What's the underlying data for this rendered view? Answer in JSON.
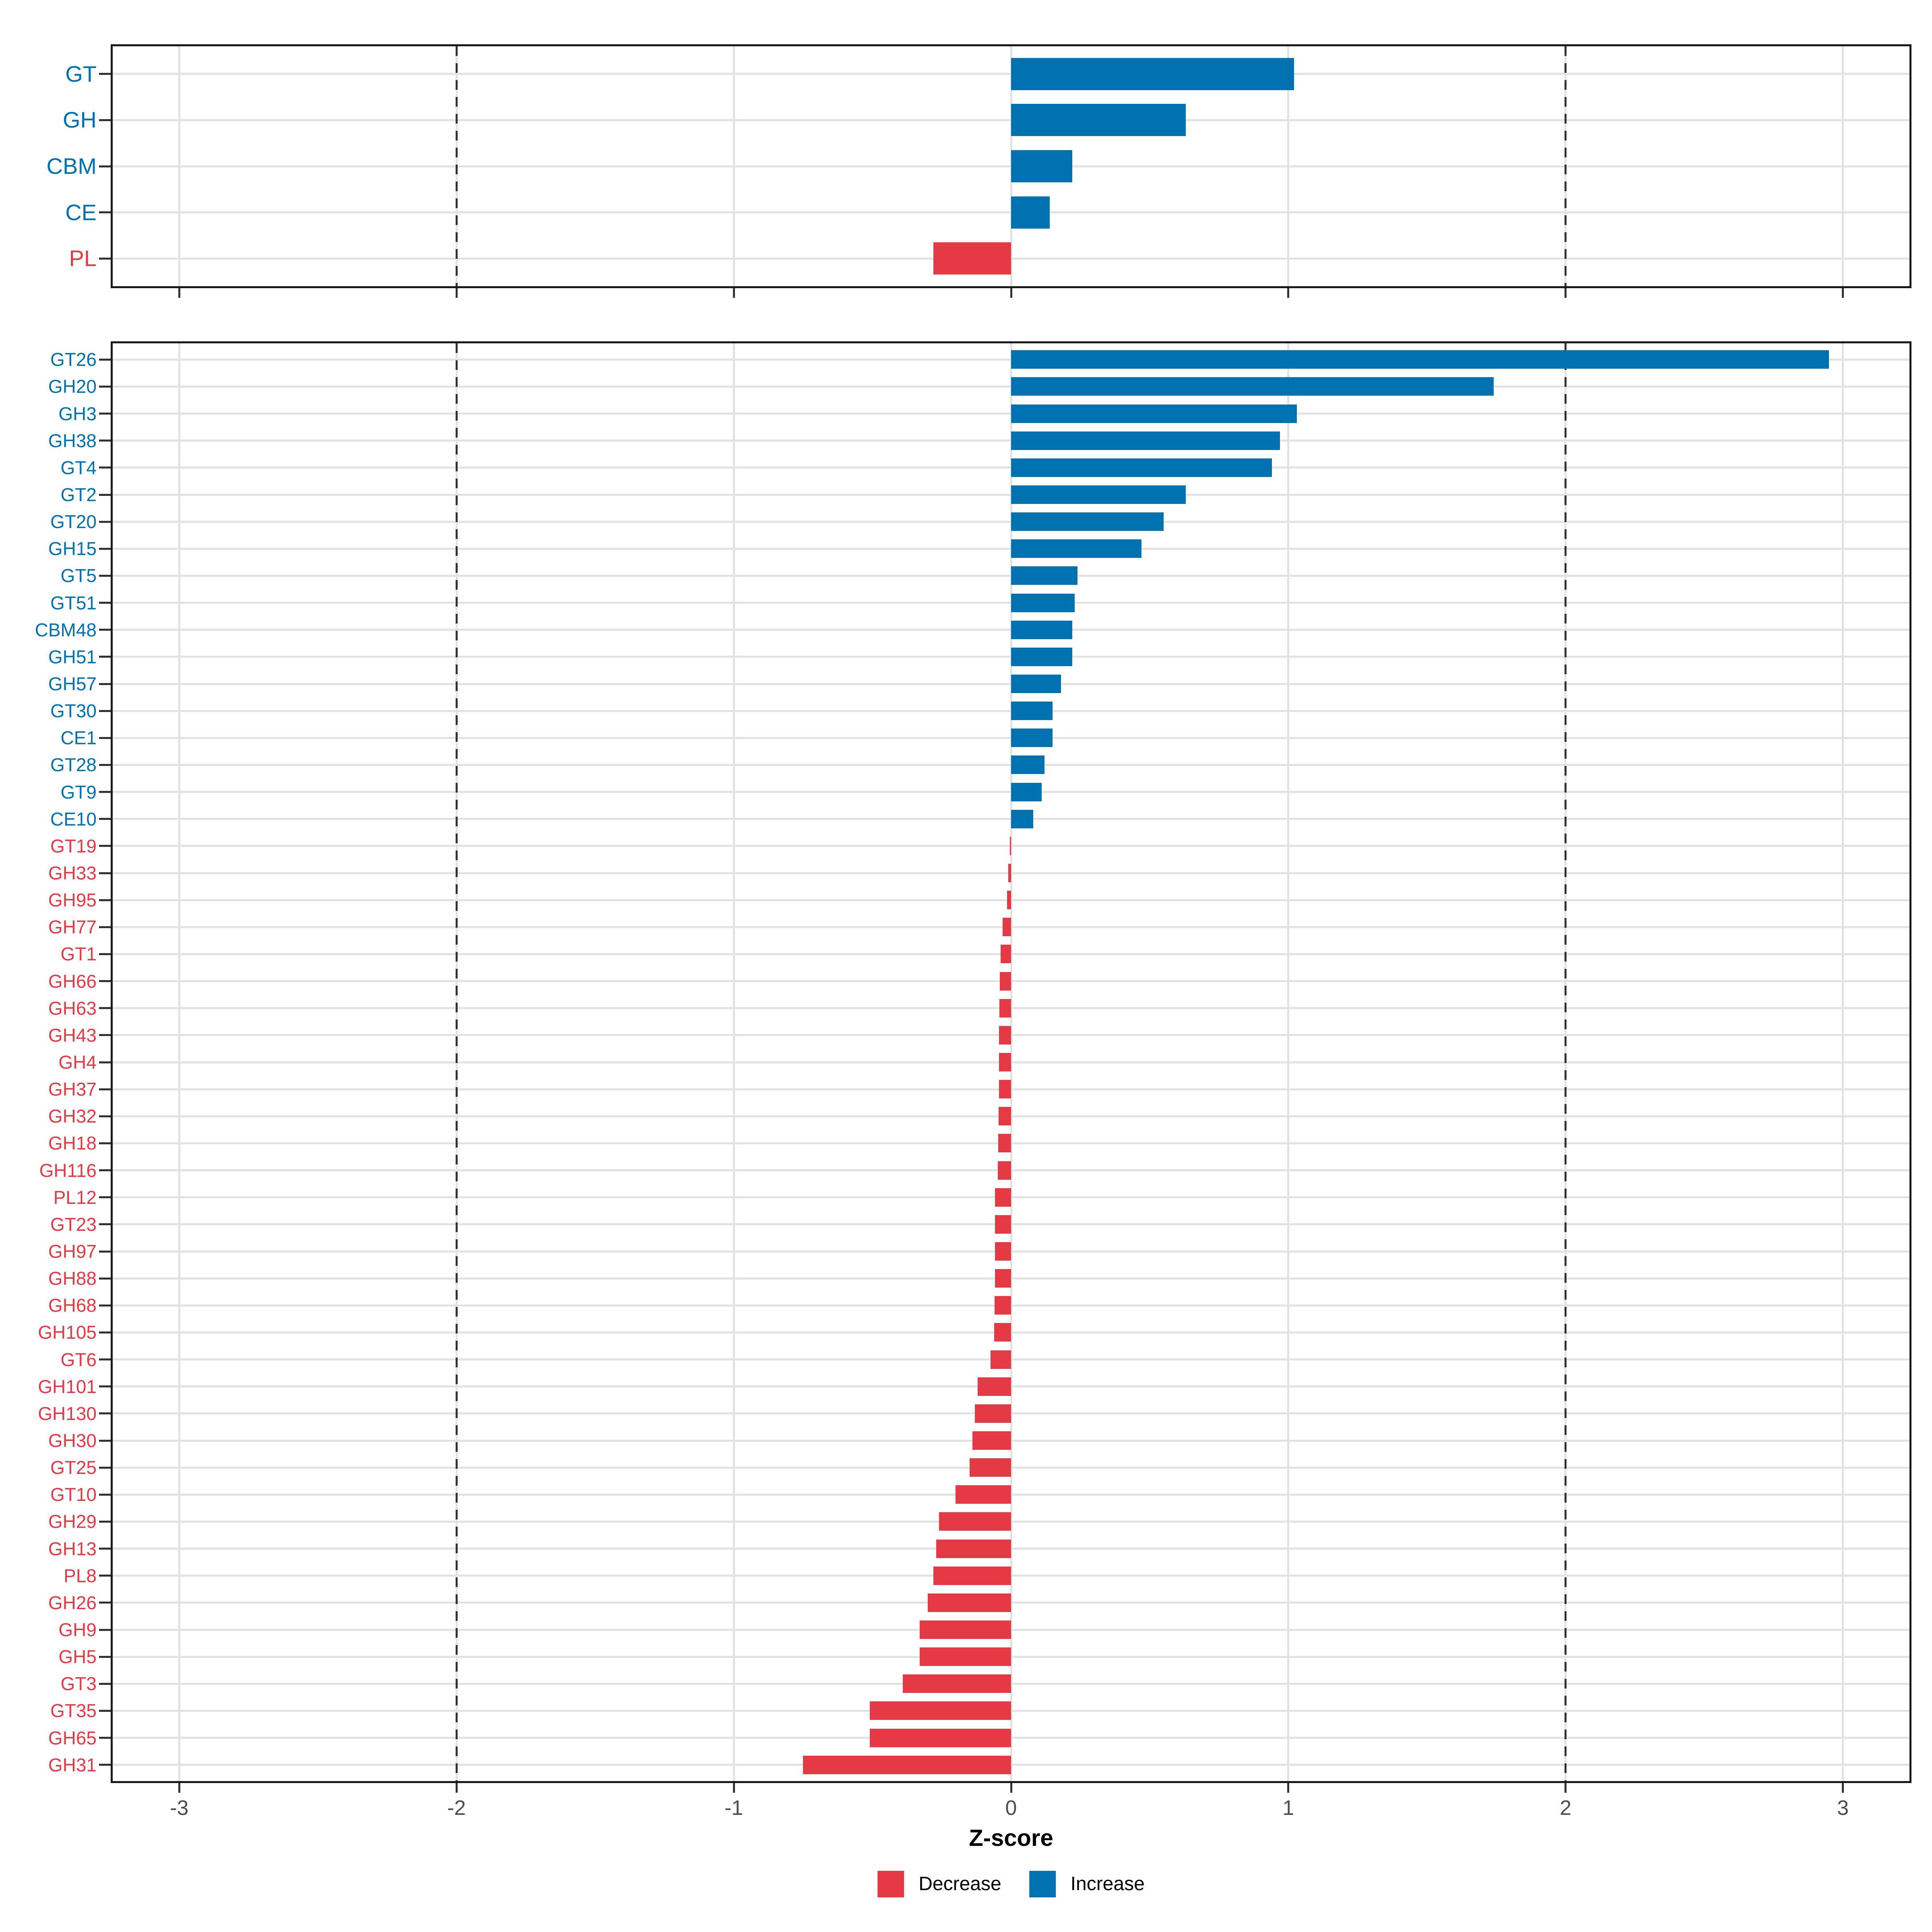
{
  "chart_data": {
    "type": "bar",
    "orientation": "horizontal",
    "xlabel": "Z-score",
    "x_ticks": [
      -3,
      -2,
      -1,
      0,
      1,
      2,
      3
    ],
    "x_tick_labels": [
      "-3",
      "-2",
      "-1",
      "0",
      "1",
      "2",
      "3"
    ],
    "xlim": [
      -3.24,
      3.24
    ],
    "grid": "major vertical gridlines at integers, horizontal gridline per category",
    "dashed_lines": [
      -2,
      2
    ],
    "legend_position": "bottom",
    "legend": [
      {
        "label": "Decrease",
        "color": "#E63946"
      },
      {
        "label": "Increase",
        "color": "#0072B2"
      }
    ],
    "colors": {
      "increase": "#0072B2",
      "decrease": "#E63946"
    },
    "panels": [
      {
        "name": "cazyme-class",
        "categories": [
          "GT",
          "GH",
          "CBM",
          "CE",
          "PL"
        ],
        "values": [
          1.02,
          0.63,
          0.22,
          0.14,
          -0.28
        ],
        "directions": [
          "increase",
          "increase",
          "increase",
          "increase",
          "decrease"
        ]
      },
      {
        "name": "cazyme-family",
        "categories": [
          "GT26",
          "GH20",
          "GH3",
          "GH38",
          "GT4",
          "GT2",
          "GT20",
          "GH15",
          "GT5",
          "GT51",
          "CBM48",
          "GH51",
          "GH57",
          "GT30",
          "CE1",
          "GT28",
          "GT9",
          "CE10",
          "GT19",
          "GH33",
          "GH95",
          "GH77",
          "GT1",
          "GH66",
          "GH63",
          "GH43",
          "GH4",
          "GH37",
          "GH32",
          "GH18",
          "GH116",
          "PL12",
          "GT23",
          "GH97",
          "GH88",
          "GH68",
          "GH105",
          "GT6",
          "GH101",
          "GH130",
          "GH30",
          "GT25",
          "GT10",
          "GH29",
          "GH13",
          "PL8",
          "GH26",
          "GH9",
          "GH5",
          "GT3",
          "GT35",
          "GH65",
          "GH31"
        ],
        "values": [
          2.95,
          1.74,
          1.03,
          0.97,
          0.94,
          0.63,
          0.55,
          0.47,
          0.24,
          0.23,
          0.22,
          0.22,
          0.18,
          0.15,
          0.15,
          0.12,
          0.11,
          0.08,
          -0.005,
          -0.01,
          -0.015,
          -0.03,
          -0.038,
          -0.04,
          -0.042,
          -0.043,
          -0.043,
          -0.044,
          -0.045,
          -0.046,
          -0.048,
          -0.058,
          -0.058,
          -0.058,
          -0.058,
          -0.06,
          -0.061,
          -0.074,
          -0.12,
          -0.13,
          -0.14,
          -0.15,
          -0.2,
          -0.26,
          -0.27,
          -0.28,
          -0.3,
          -0.33,
          -0.33,
          -0.39,
          -0.51,
          -0.51,
          -0.75
        ],
        "directions": [
          "increase",
          "increase",
          "increase",
          "increase",
          "increase",
          "increase",
          "increase",
          "increase",
          "increase",
          "increase",
          "increase",
          "increase",
          "increase",
          "increase",
          "increase",
          "increase",
          "increase",
          "increase",
          "decrease",
          "decrease",
          "decrease",
          "decrease",
          "decrease",
          "decrease",
          "decrease",
          "decrease",
          "decrease",
          "decrease",
          "decrease",
          "decrease",
          "decrease",
          "decrease",
          "decrease",
          "decrease",
          "decrease",
          "decrease",
          "decrease",
          "decrease",
          "decrease",
          "decrease",
          "decrease",
          "decrease",
          "decrease",
          "decrease",
          "decrease",
          "decrease",
          "decrease",
          "decrease",
          "decrease",
          "decrease",
          "decrease",
          "decrease",
          "decrease"
        ]
      }
    ]
  }
}
